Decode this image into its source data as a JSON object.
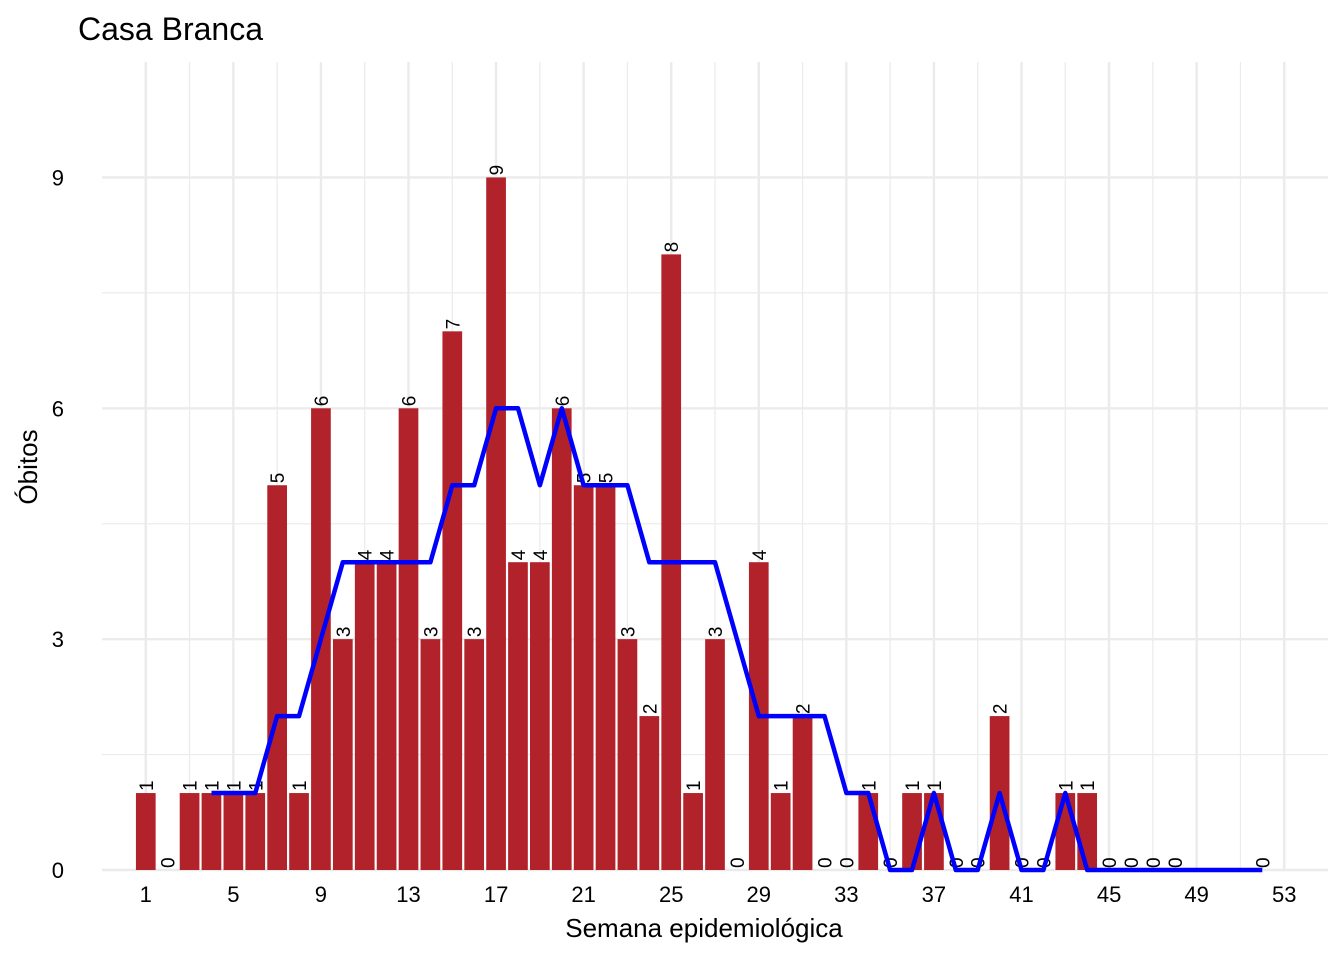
{
  "chart_data": {
    "type": "bar",
    "title": "Casa Branca",
    "xlabel": "Semana epidemiológica",
    "ylabel": "Óbitos",
    "x": [
      1,
      2,
      3,
      4,
      5,
      6,
      7,
      8,
      9,
      10,
      11,
      12,
      13,
      14,
      15,
      16,
      17,
      18,
      19,
      20,
      21,
      22,
      23,
      24,
      25,
      26,
      27,
      28,
      29,
      30,
      31,
      32,
      33,
      34,
      35,
      36,
      37,
      38,
      39,
      40,
      41,
      42,
      43,
      44,
      45,
      46,
      47,
      48
    ],
    "values": [
      1,
      0,
      1,
      1,
      1,
      1,
      5,
      1,
      6,
      3,
      4,
      4,
      6,
      3,
      7,
      3,
      9,
      4,
      4,
      6,
      5,
      5,
      3,
      2,
      8,
      1,
      3,
      0,
      4,
      1,
      2,
      0,
      0,
      1,
      0,
      1,
      1,
      0,
      0,
      2,
      0,
      0,
      1,
      1,
      0,
      0,
      0,
      0
    ],
    "line_series": {
      "x": [
        4,
        5,
        6,
        7,
        8,
        9,
        10,
        11,
        12,
        13,
        14,
        15,
        16,
        17,
        18,
        19,
        20,
        21,
        22,
        23,
        24,
        25,
        26,
        27,
        28,
        29,
        30,
        31,
        32,
        33,
        34,
        35,
        36,
        37,
        38,
        39,
        40,
        41,
        42,
        43,
        44,
        45,
        46,
        47,
        48,
        49,
        50,
        51,
        52
      ],
      "values": [
        1,
        1,
        1,
        2,
        2,
        3,
        4,
        4,
        4,
        4,
        4,
        5,
        5,
        6,
        6,
        5,
        6,
        5,
        5,
        5,
        4,
        4,
        4,
        4,
        3,
        2,
        2,
        2,
        2,
        1,
        1,
        0,
        0,
        1,
        0,
        0,
        1,
        0,
        0,
        1,
        0,
        0,
        0,
        0,
        0,
        0,
        0,
        0,
        0
      ]
    },
    "extra_bar_labels": [
      {
        "x": 52,
        "value": 0
      }
    ],
    "xticks": [
      1,
      5,
      9,
      13,
      17,
      21,
      25,
      29,
      33,
      37,
      41,
      45,
      49,
      53
    ],
    "yticks": [
      0,
      3,
      6,
      9
    ],
    "xlim": [
      -1,
      55
    ],
    "ylim": [
      0,
      10.5
    ],
    "grid": true,
    "colors": {
      "bar": "#B2222A",
      "line": "#0000FF",
      "grid": "#EBEBEB"
    }
  }
}
